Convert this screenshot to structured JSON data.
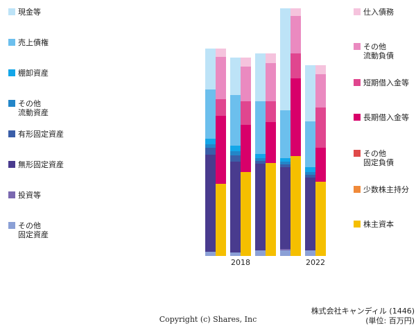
{
  "chart_data": {
    "type": "paired_stacked_bar",
    "categories": [
      null,
      "2018",
      null,
      null,
      "2022"
    ],
    "ylim": [
      0,
      360
    ],
    "left_series": [
      {
        "name": "現金等",
        "color": "#bde3f7",
        "values": [
          59,
          54,
          69,
          147,
          81
        ]
      },
      {
        "name": "売上債権",
        "color": "#6cbfed",
        "values": [
          71,
          73,
          76,
          69,
          66
        ]
      },
      {
        "name": "棚卸資産",
        "color": "#14a6e8",
        "values": [
          8,
          8,
          6,
          5,
          7
        ]
      },
      {
        "name": "その他\n流動資産",
        "color": "#2386c8",
        "values": [
          5,
          6,
          4,
          4,
          4
        ]
      },
      {
        "name": "有形固定資産",
        "color": "#3a5ea8",
        "values": [
          10,
          9,
          4,
          4,
          4
        ]
      },
      {
        "name": "無形固定資産",
        "color": "#493b8e",
        "values": [
          140,
          131,
          125,
          118,
          105
        ]
      },
      {
        "name": "投資等",
        "color": "#7a68b0",
        "values": [
          0,
          0,
          0,
          2,
          0
        ]
      },
      {
        "name": "その他\n固定資産",
        "color": "#8ba0d6",
        "values": [
          6,
          5,
          8,
          8,
          8
        ]
      }
    ],
    "right_series": [
      {
        "name": "仕入債務",
        "color": "#f5c3dd",
        "values": [
          12,
          13,
          14,
          11,
          13
        ]
      },
      {
        "name": "その他\n流動負債",
        "color": "#ea8ac0",
        "values": [
          61,
          50,
          55,
          54,
          48
        ]
      },
      {
        "name": "短期借入金等",
        "color": "#e0468f",
        "values": [
          24,
          34,
          30,
          36,
          58
        ]
      },
      {
        "name": "長期借入金等",
        "color": "#d8006a",
        "values": [
          98,
          68,
          59,
          112,
          49
        ]
      },
      {
        "name": "その他\n固定負債",
        "color": "#e04a4a",
        "values": [
          0,
          0,
          0,
          0,
          0
        ]
      },
      {
        "name": "少数株主持分",
        "color": "#f08a3a",
        "values": [
          0,
          0,
          0,
          0,
          0
        ]
      },
      {
        "name": "株主資本",
        "color": "#f5bf00",
        "values": [
          104,
          121,
          134,
          144,
          107
        ]
      }
    ],
    "copyright": "Copyright (c) Shares, Inc",
    "company": "株式会社キャンディル (1446)",
    "unit": "(単位: 百万円)"
  }
}
